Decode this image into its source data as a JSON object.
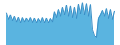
{
  "chart_data": {
    "type": "area",
    "series": [
      {
        "type": "area",
        "color": "#5ab4e0",
        "values": [
          72,
          58,
          68,
          55,
          65,
          52,
          63,
          50,
          62,
          52,
          61,
          53,
          62,
          51,
          61,
          50,
          60,
          51,
          62,
          50,
          61,
          50,
          60,
          52,
          75,
          62,
          80,
          65,
          85,
          68,
          90,
          65,
          88,
          62,
          85,
          60,
          92,
          70,
          95,
          68,
          93,
          65,
          91,
          35,
          22,
          18,
          60,
          68,
          78,
          65,
          82,
          60,
          80,
          58,
          76
        ]
      },
      {
        "type": "line",
        "color": "#3a8fc7",
        "values": [
          72,
          58,
          68,
          55,
          65,
          52,
          63,
          50,
          62,
          52,
          61,
          53,
          62,
          51,
          61,
          50,
          60,
          51,
          62,
          50,
          61,
          50,
          60,
          52,
          75,
          62,
          80,
          65,
          85,
          68,
          90,
          65,
          88,
          62,
          85,
          60,
          92,
          70,
          95,
          68,
          93,
          65,
          91,
          35,
          22,
          18,
          60,
          68,
          78,
          65,
          82,
          60,
          80,
          58,
          76
        ]
      }
    ],
    "ylim": [
      0,
      100
    ],
    "tick_labels": false
  }
}
